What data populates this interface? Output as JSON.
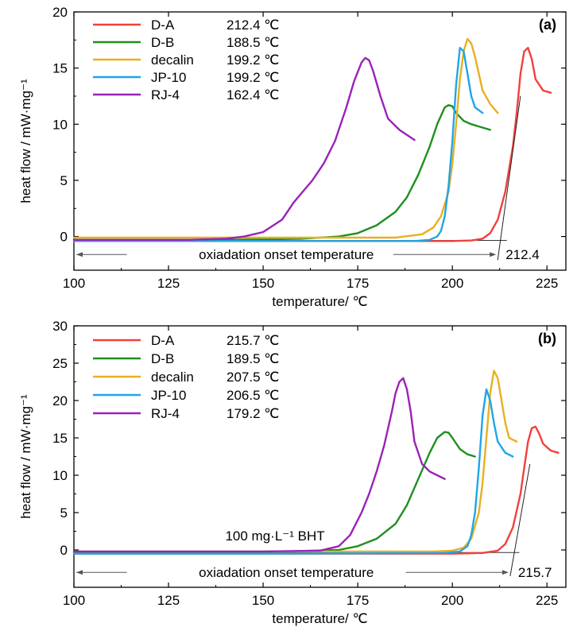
{
  "colors": {
    "D-A": "#f0413c",
    "D-B": "#1f8f1f",
    "decalin": "#e8b020",
    "JP-10": "#1ea6ea",
    "RJ-4": "#9a22b8",
    "axis": "#000000",
    "arrow": "#555555"
  },
  "chart_data": [
    {
      "type": "line",
      "panel_label": "(a)",
      "xlabel": "temperature/ ℃",
      "ylabel": "heat flow / mW·mg⁻¹",
      "xlim": [
        100,
        230
      ],
      "ylim": [
        -3,
        20
      ],
      "xticks": [
        100,
        125,
        150,
        175,
        200,
        225
      ],
      "yticks": [
        0,
        5,
        10,
        15,
        20
      ],
      "grid": false,
      "legend_position": "top-left",
      "annotation": "oxiadation onset temperature",
      "onset_label": "212.4",
      "onset_value": 212.4,
      "series": [
        {
          "name": "D-A",
          "onset": "212.4 ℃",
          "x": [
            100,
            150,
            190,
            200,
            205,
            208,
            210,
            212,
            214,
            216,
            217,
            218,
            219,
            220,
            221,
            222,
            224,
            226
          ],
          "y": [
            -0.4,
            -0.4,
            -0.4,
            -0.4,
            -0.35,
            -0.2,
            0.3,
            1.5,
            4.0,
            8.0,
            11.0,
            14.5,
            16.5,
            16.8,
            15.8,
            14.0,
            13.0,
            12.8
          ]
        },
        {
          "name": "D-B",
          "onset": "188.5 ℃",
          "x": [
            100,
            140,
            160,
            170,
            175,
            180,
            185,
            188,
            191,
            194,
            196,
            198,
            199,
            200,
            201,
            203,
            205,
            207,
            210
          ],
          "y": [
            -0.3,
            -0.3,
            -0.2,
            0,
            0.3,
            1.0,
            2.2,
            3.5,
            5.5,
            8.0,
            10.0,
            11.5,
            11.7,
            11.6,
            11.0,
            10.3,
            10.0,
            9.8,
            9.5
          ]
        },
        {
          "name": "decalin",
          "onset": "199.2 ℃",
          "x": [
            100,
            150,
            185,
            192,
            195,
            197,
            199,
            200,
            201,
            202,
            203,
            204,
            205,
            206,
            207,
            208,
            210,
            212
          ],
          "y": [
            -0.1,
            -0.1,
            -0.1,
            0.2,
            0.8,
            1.8,
            4.0,
            6.5,
            10.0,
            14.0,
            16.5,
            17.6,
            17.2,
            16.0,
            14.5,
            13.0,
            11.8,
            11.0
          ]
        },
        {
          "name": "JP-10",
          "onset": "199.2 ℃",
          "x": [
            100,
            150,
            190,
            194,
            196,
            197,
            198,
            199,
            200,
            201,
            202,
            203,
            204,
            205,
            206,
            208
          ],
          "y": [
            -0.4,
            -0.4,
            -0.4,
            -0.3,
            0,
            0.5,
            1.8,
            4.5,
            8.5,
            13.5,
            16.8,
            16.5,
            14.5,
            12.5,
            11.5,
            11.0
          ]
        },
        {
          "name": "RJ-4",
          "onset": "162.4 ℃",
          "x": [
            100,
            130,
            140,
            145,
            150,
            155,
            158,
            160,
            163,
            166,
            169,
            172,
            174,
            176,
            177,
            178,
            179,
            181,
            183,
            186,
            190
          ],
          "y": [
            -0.3,
            -0.3,
            -0.2,
            0,
            0.4,
            1.5,
            3.0,
            3.8,
            5.0,
            6.5,
            8.5,
            11.5,
            13.8,
            15.5,
            15.9,
            15.7,
            14.8,
            12.5,
            10.5,
            9.5,
            8.6
          ]
        }
      ]
    },
    {
      "type": "line",
      "panel_label": "(b)",
      "xlabel": "temperature/ ℃",
      "ylabel": "heat flow / mW·mg⁻¹",
      "xlim": [
        100,
        230
      ],
      "ylim": [
        -5,
        30
      ],
      "xticks": [
        100,
        125,
        150,
        175,
        200,
        225
      ],
      "yticks": [
        0,
        5,
        10,
        15,
        20,
        25,
        30
      ],
      "grid": false,
      "legend_position": "top-left",
      "annotation": "oxiadation onset temperature",
      "note": "100 mg·L⁻¹  BHT",
      "onset_label": "215.7",
      "onset_value": 215.7,
      "series": [
        {
          "name": "D-A",
          "onset": "215.7 ℃",
          "x": [
            100,
            150,
            200,
            208,
            212,
            214,
            216,
            218,
            219,
            220,
            221,
            222,
            223,
            224,
            226,
            228
          ],
          "y": [
            -0.5,
            -0.5,
            -0.5,
            -0.4,
            -0.1,
            0.8,
            3.0,
            7.5,
            11.0,
            14.5,
            16.3,
            16.5,
            15.5,
            14.2,
            13.3,
            13.0
          ]
        },
        {
          "name": "D-B",
          "onset": "189.5 ℃",
          "x": [
            100,
            150,
            170,
            175,
            180,
            185,
            188,
            191,
            194,
            196,
            198,
            199,
            200,
            202,
            204,
            206
          ],
          "y": [
            -0.3,
            -0.3,
            0,
            0.5,
            1.5,
            3.5,
            6.0,
            9.5,
            13.0,
            15.0,
            15.8,
            15.7,
            15.0,
            13.5,
            12.8,
            12.5
          ]
        },
        {
          "name": "decalin",
          "onset": "207.5 ℃",
          "x": [
            100,
            150,
            195,
            200,
            203,
            205,
            207,
            208,
            209,
            210,
            211,
            212,
            213,
            214,
            215,
            217
          ],
          "y": [
            -0.2,
            -0.2,
            -0.2,
            -0.1,
            0.3,
            1.5,
            5.0,
            9.0,
            15.0,
            21.0,
            24.0,
            23.0,
            20.0,
            17.0,
            15.0,
            14.5
          ]
        },
        {
          "name": "JP-10",
          "onset": "206.5 ℃",
          "x": [
            100,
            150,
            198,
            202,
            204,
            205,
            206,
            207,
            208,
            209,
            210,
            211,
            212,
            214,
            216
          ],
          "y": [
            -0.5,
            -0.5,
            -0.4,
            -0.2,
            0.5,
            2.0,
            5.0,
            11.0,
            18.0,
            21.5,
            20.0,
            17.0,
            14.5,
            13.0,
            12.5
          ]
        },
        {
          "name": "RJ-4",
          "onset": "179.2 ℃",
          "x": [
            100,
            150,
            165,
            170,
            173,
            176,
            178,
            180,
            182,
            184,
            185,
            186,
            187,
            188,
            189,
            190,
            192,
            194,
            196,
            198
          ],
          "y": [
            -0.2,
            -0.2,
            -0.1,
            0.5,
            2.0,
            5.0,
            7.5,
            10.5,
            14.0,
            18.5,
            21.0,
            22.5,
            23.0,
            21.5,
            18.5,
            14.5,
            11.5,
            10.5,
            10.0,
            9.5
          ]
        }
      ]
    }
  ]
}
